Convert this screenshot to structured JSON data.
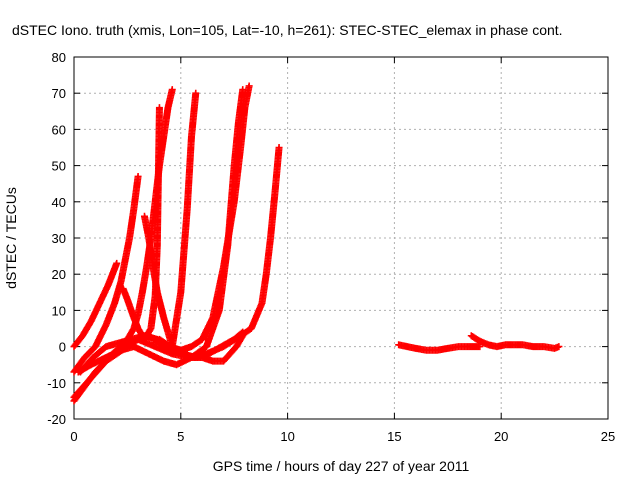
{
  "chart_data": {
    "type": "scatter",
    "title": "dSTEC Iono. truth (xmis, Lon=105, Lat=-10, h=261): STEC-STEC_elemax in phase cont.",
    "xlabel": "GPS time / hours of day 227 of year 2011",
    "ylabel": "dSTEC  / TECUs",
    "xlim": [
      0,
      25
    ],
    "ylim": [
      -20,
      80
    ],
    "xticks": [
      0,
      5,
      10,
      15,
      20,
      25
    ],
    "yticks": [
      -20,
      -10,
      0,
      10,
      20,
      30,
      40,
      50,
      60,
      70,
      80
    ],
    "grid": true,
    "marker": "+",
    "color": "#ff0000",
    "series": [
      {
        "x": [
          0.0,
          0.4,
          0.8,
          1.2,
          1.6,
          1.8,
          2.0
        ],
        "y": [
          0,
          3,
          7,
          12,
          17,
          20,
          23
        ]
      },
      {
        "x": [
          0.0,
          0.5,
          1.0,
          1.5,
          1.9,
          2.2,
          2.4,
          2.6,
          2.8,
          3.0
        ],
        "y": [
          -7,
          -3,
          0,
          6,
          12,
          18,
          24,
          30,
          38,
          47
        ]
      },
      {
        "x": [
          0.0,
          0.6,
          1.2,
          1.8,
          2.2,
          2.5,
          2.8,
          3.0,
          3.2,
          3.4,
          3.6,
          3.8,
          4.0,
          4.2,
          4.4,
          4.6
        ],
        "y": [
          -14,
          -10,
          -6,
          -2,
          0,
          2,
          5,
          9,
          15,
          22,
          30,
          40,
          50,
          58,
          66,
          71
        ]
      },
      {
        "x": [
          2.3,
          2.5,
          2.8,
          3.0,
          3.3,
          3.6,
          3.8,
          3.9,
          4.0
        ],
        "y": [
          16,
          13,
          8,
          5,
          2,
          5,
          14,
          28,
          66
        ]
      },
      {
        "x": [
          3.3,
          3.5,
          3.7,
          3.9,
          4.2,
          4.6,
          5.0,
          5.3,
          5.5,
          5.7
        ],
        "y": [
          36,
          30,
          22,
          15,
          8,
          0,
          15,
          38,
          58,
          70
        ]
      },
      {
        "x": [
          0.2,
          0.8,
          1.5,
          2.2,
          2.8,
          3.5,
          4.2,
          4.8,
          5.5,
          6.2,
          6.8,
          7.2,
          7.5,
          7.7,
          7.9
        ],
        "y": [
          -7,
          -5,
          -3,
          -1,
          0,
          -2,
          -4,
          -5,
          -3,
          0,
          10,
          28,
          50,
          62,
          71
        ]
      },
      {
        "x": [
          4.0,
          4.5,
          5.0,
          5.5,
          6.0,
          6.5,
          7.0,
          7.5,
          7.8,
          8.0,
          8.2
        ],
        "y": [
          2,
          0,
          -1,
          0,
          2,
          8,
          22,
          40,
          55,
          66,
          72
        ]
      },
      {
        "x": [
          0.0,
          0.5,
          1.0,
          1.5,
          2.0,
          2.5,
          3.0,
          3.5,
          4.0,
          4.5,
          5.0,
          5.5,
          6.0,
          6.5,
          7.0,
          7.3,
          7.6,
          7.9
        ],
        "y": [
          -15,
          -11,
          -7,
          -4,
          -2,
          0,
          2,
          3,
          1,
          -1,
          -2,
          -3,
          -3,
          -4,
          -4,
          -2,
          0,
          3
        ]
      },
      {
        "x": [
          3.0,
          3.8,
          4.6,
          5.4,
          6.2,
          7.0,
          7.8,
          8.3,
          8.8,
          9.0,
          9.2,
          9.4,
          9.6
        ],
        "y": [
          2,
          0,
          -2,
          -3,
          -2,
          0,
          3,
          5,
          12,
          20,
          30,
          42,
          55
        ]
      },
      {
        "x": [
          0.3,
          0.9,
          1.5,
          2.1,
          2.7,
          3.3,
          3.9,
          4.5,
          5.1,
          5.7,
          6.3,
          6.9,
          7.5,
          7.9
        ],
        "y": [
          -7,
          -3,
          0,
          1,
          2,
          3,
          2,
          0,
          -2,
          -3,
          -2,
          0,
          2,
          4
        ]
      },
      {
        "x": [
          15.2,
          15.6,
          16.0,
          16.5,
          17.0,
          17.5,
          18.0,
          18.5,
          19.0
        ],
        "y": [
          0.5,
          0,
          -0.5,
          -1,
          -1,
          -0.5,
          0,
          0,
          0
        ]
      },
      {
        "x": [
          18.6,
          19.0,
          19.4,
          19.8,
          20.2,
          20.6,
          21.0,
          21.5,
          22.0,
          22.5,
          22.7
        ],
        "y": [
          3,
          1.5,
          0.5,
          0,
          0.5,
          0.5,
          0.5,
          0,
          0,
          -0.5,
          0
        ]
      }
    ]
  }
}
